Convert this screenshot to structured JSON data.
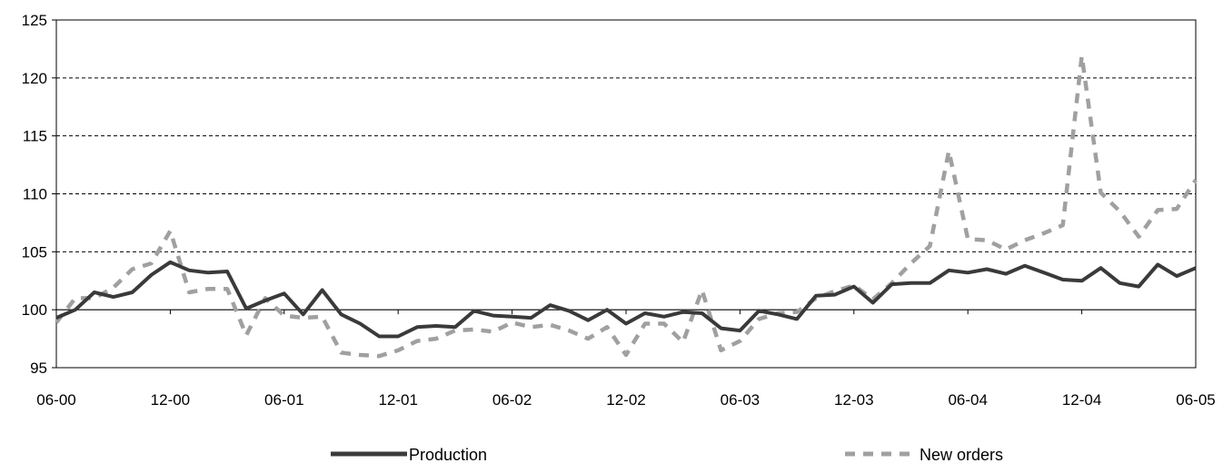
{
  "chart_data": {
    "type": "line",
    "title": "",
    "xlabel": "",
    "ylabel": "",
    "ylim": [
      95,
      125
    ],
    "yticks": [
      95,
      100,
      105,
      110,
      115,
      120,
      125
    ],
    "x_tick_labels": [
      "06-00",
      "12-00",
      "06-01",
      "12-01",
      "06-02",
      "12-02",
      "06-03",
      "12-03",
      "06-04",
      "12-04",
      "06-05"
    ],
    "x_tick_every": 6,
    "grid": "horizontal dashed",
    "legend_position": "bottom",
    "reference_line": 100,
    "x": [
      "06-00",
      "07-00",
      "08-00",
      "09-00",
      "10-00",
      "11-00",
      "12-00",
      "01-01",
      "02-01",
      "03-01",
      "04-01",
      "05-01",
      "06-01",
      "07-01",
      "08-01",
      "09-01",
      "10-01",
      "11-01",
      "12-01",
      "01-02",
      "02-02",
      "03-02",
      "04-02",
      "05-02",
      "06-02",
      "07-02",
      "08-02",
      "09-02",
      "10-02",
      "11-02",
      "12-02",
      "01-03",
      "02-03",
      "03-03",
      "04-03",
      "05-03",
      "06-03",
      "07-03",
      "08-03",
      "09-03",
      "10-03",
      "11-03",
      "12-03",
      "01-04",
      "02-04",
      "03-04",
      "04-04",
      "05-04",
      "06-04",
      "07-04",
      "08-04",
      "09-04",
      "10-04",
      "11-04",
      "12-04",
      "01-05",
      "02-05",
      "03-05",
      "04-05",
      "05-05",
      "06-05"
    ],
    "series": [
      {
        "name": "Production",
        "color": "#3a3a3a",
        "style": "solid",
        "values": [
          99.3,
          100.0,
          101.5,
          101.1,
          101.5,
          103.0,
          104.1,
          103.4,
          103.2,
          103.3,
          100.1,
          100.8,
          101.4,
          99.6,
          101.7,
          99.6,
          98.8,
          97.7,
          97.7,
          98.5,
          98.6,
          98.5,
          99.9,
          99.5,
          99.4,
          99.3,
          100.4,
          99.9,
          99.1,
          100.0,
          98.8,
          99.7,
          99.4,
          99.8,
          99.7,
          98.4,
          98.2,
          99.9,
          99.6,
          99.2,
          101.2,
          101.3,
          102.0,
          100.6,
          102.2,
          102.3,
          102.3,
          103.4,
          103.2,
          103.5,
          103.1,
          103.8,
          103.2,
          102.6,
          102.5,
          103.6,
          102.3,
          102.0,
          103.9,
          102.9,
          103.6
        ]
      },
      {
        "name": "New orders",
        "color": "#a0a0a0",
        "style": "dashed",
        "values": [
          98.9,
          101.0,
          101.0,
          101.9,
          103.5,
          104.0,
          106.8,
          101.5,
          101.8,
          101.8,
          97.8,
          101.0,
          99.5,
          99.3,
          99.4,
          96.3,
          96.1,
          96.0,
          96.5,
          97.3,
          97.5,
          98.2,
          98.3,
          98.1,
          98.9,
          98.5,
          98.7,
          98.2,
          97.5,
          98.5,
          96.1,
          98.8,
          98.8,
          97.2,
          101.7,
          96.5,
          97.3,
          99.2,
          99.7,
          99.8,
          101.0,
          101.6,
          102.1,
          100.9,
          102.3,
          104.0,
          105.5,
          113.7,
          106.1,
          106.0,
          105.2,
          106.0,
          106.6,
          107.3,
          121.9,
          110.1,
          108.5,
          106.3,
          108.6,
          108.7,
          111.2
        ]
      }
    ]
  }
}
